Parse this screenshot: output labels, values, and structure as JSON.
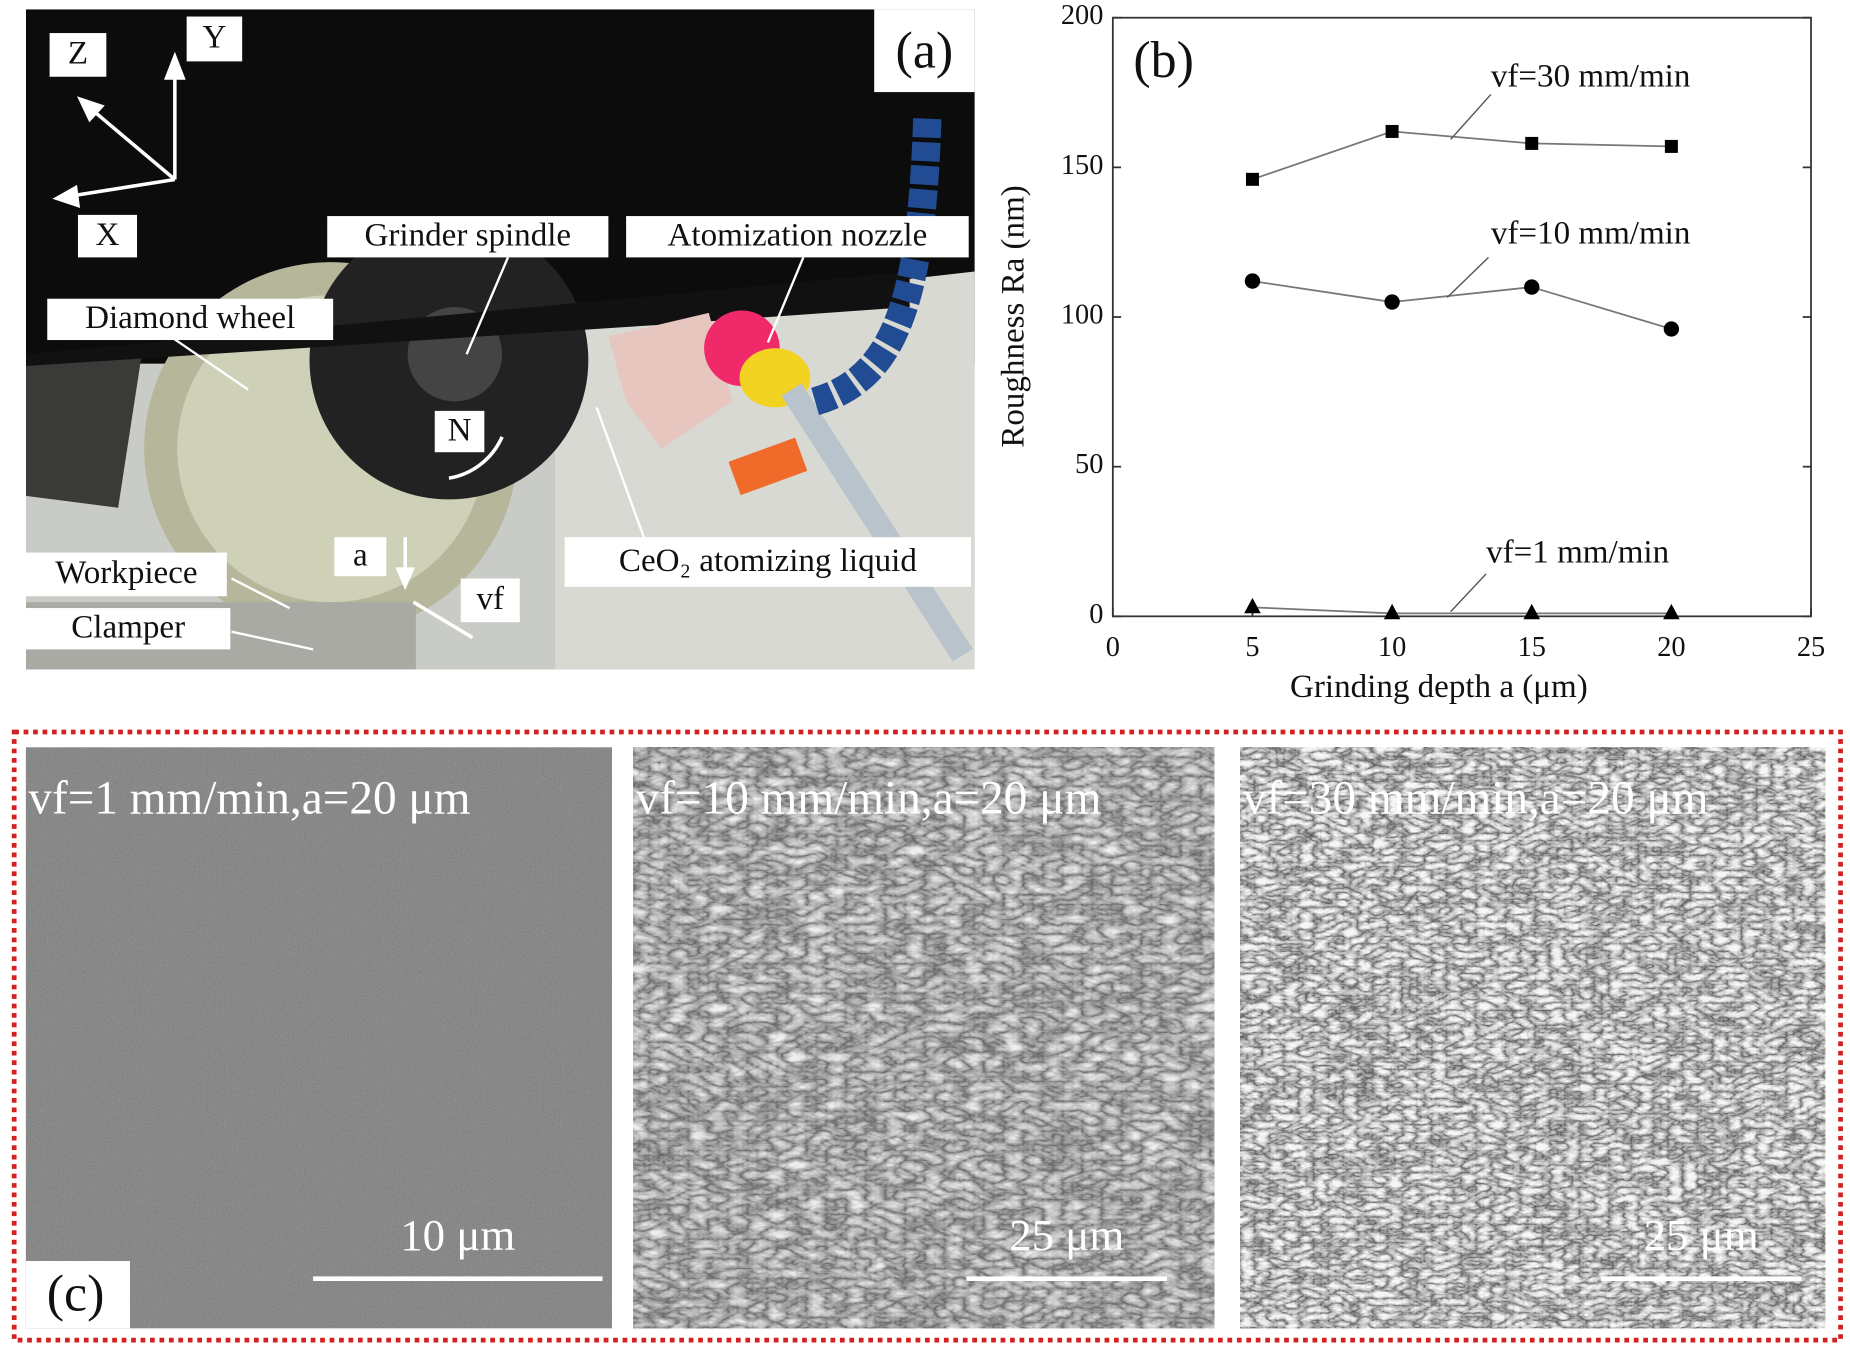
{
  "panel_a": {
    "label": "(a)",
    "axes": {
      "z": "Z",
      "y": "Y",
      "x": "X"
    },
    "callouts": [
      "Grinder spindle",
      "Atomization nozzle",
      "Diamond wheel",
      "N",
      "Workpiece",
      "Clamper",
      "a",
      "vf",
      "CeO₂ atomizing liquid"
    ]
  },
  "chart_data": {
    "type": "line",
    "label": "(b)",
    "x_label": "Grinding depth a (μm)",
    "y_label": "Roughness Ra (nm)",
    "x": [
      5,
      10,
      15,
      20
    ],
    "series": [
      {
        "name": "vf=30 mm/min",
        "color": "#000000",
        "marker": "square",
        "values": [
          146,
          162,
          158,
          157
        ]
      },
      {
        "name": "vf=10 mm/min",
        "color": "#000000",
        "marker": "circle",
        "values": [
          112,
          105,
          110,
          96
        ]
      },
      {
        "name": "vf=1 mm/min",
        "color": "#000000",
        "marker": "triangle",
        "values": [
          3,
          1,
          1,
          1
        ]
      }
    ],
    "line_color": "#777777",
    "xlim": [
      0,
      25
    ],
    "xticks": [
      0,
      5,
      10,
      15,
      20,
      25
    ],
    "ylim": [
      0,
      200
    ],
    "yticks": [
      0,
      50,
      100,
      150,
      200
    ]
  },
  "panel_c": {
    "label": "(c)",
    "images": [
      {
        "caption": "vf=1 mm/min,a=20 μm",
        "scale_bar": "10 μm"
      },
      {
        "caption": "vf=10 mm/min,a=20 μm",
        "scale_bar": "25 μm"
      },
      {
        "caption": "vf=30 mm/min,a=20 μm",
        "scale_bar": "25 μm"
      }
    ]
  }
}
